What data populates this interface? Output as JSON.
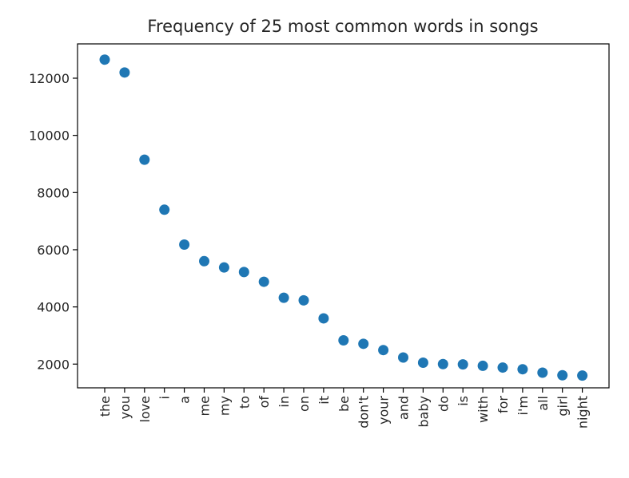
{
  "chart_data": {
    "type": "scatter",
    "title": "Frequency of 25 most common words in songs",
    "xlabel": "",
    "ylabel": "",
    "categories": [
      "the",
      "you",
      "love",
      "i",
      "a",
      "me",
      "my",
      "to",
      "of",
      "in",
      "on",
      "it",
      "be",
      "don't",
      "your",
      "and",
      "baby",
      "do",
      "is",
      "with",
      "for",
      "i'm",
      "all",
      "girl",
      "night"
    ],
    "values": [
      12650,
      12200,
      9150,
      7400,
      6180,
      5600,
      5380,
      5220,
      4880,
      4320,
      4230,
      3600,
      2830,
      2710,
      2490,
      2230,
      2050,
      2000,
      1990,
      1940,
      1880,
      1820,
      1700,
      1610,
      1600
    ],
    "yticks": [
      2000,
      4000,
      6000,
      8000,
      10000,
      12000
    ],
    "ylim": [
      1170,
      13200
    ],
    "grid": false,
    "legend": "none",
    "marker_color": "#1f77b4"
  }
}
